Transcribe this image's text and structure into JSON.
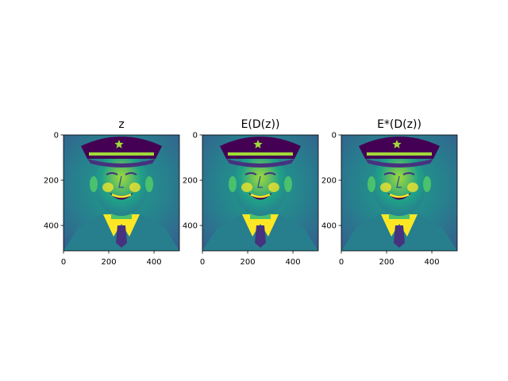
{
  "figure": {
    "background": "#ffffff"
  },
  "colormap": {
    "name": "viridis",
    "stops": [
      "#440154",
      "#46327e",
      "#365c8d",
      "#277f8e",
      "#1fa187",
      "#4ac16d",
      "#a0da39",
      "#fde725"
    ]
  },
  "chart_data": [
    {
      "type": "heatmap",
      "title": "z",
      "image_shape": [
        512,
        512
      ],
      "xlim": [
        0,
        512
      ],
      "ylim": [
        512,
        0
      ],
      "xticks": [
        0,
        200,
        400
      ],
      "yticks": [
        0,
        200,
        400
      ],
      "xlabel": "",
      "ylabel": "",
      "grid": false,
      "content": "grayscale portrait of a smiling man in a peaked cap with star badge, shown with viridis colormap"
    },
    {
      "type": "heatmap",
      "title": "E(D(z))",
      "image_shape": [
        512,
        512
      ],
      "xlim": [
        0,
        512
      ],
      "ylim": [
        512,
        0
      ],
      "xticks": [
        0,
        200,
        400
      ],
      "yticks": [
        0,
        200,
        400
      ],
      "xlabel": "",
      "ylabel": "",
      "grid": false,
      "content": "grayscale portrait of a smiling man in a peaked cap with star badge, shown with viridis colormap"
    },
    {
      "type": "heatmap",
      "title": "E*(D(z))",
      "image_shape": [
        512,
        512
      ],
      "xlim": [
        0,
        512
      ],
      "ylim": [
        512,
        0
      ],
      "xticks": [
        0,
        200,
        400
      ],
      "yticks": [
        0,
        200,
        400
      ],
      "xlabel": "",
      "ylabel": "",
      "grid": false,
      "content": "grayscale portrait of a smiling man in a peaked cap with star badge, shown with viridis colormap"
    }
  ]
}
